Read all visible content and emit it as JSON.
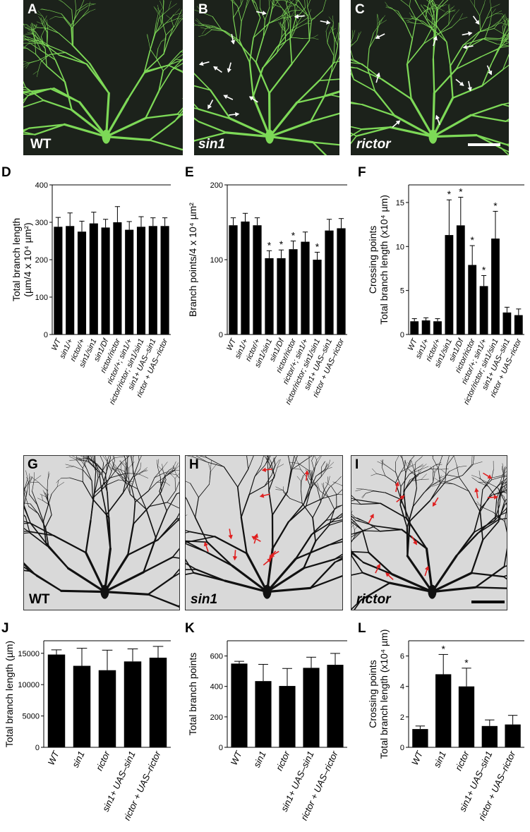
{
  "top_panels": [
    {
      "letter": "A",
      "label": "WT"
    },
    {
      "letter": "B",
      "label": "sin1"
    },
    {
      "letter": "C",
      "label": "rictor"
    }
  ],
  "mid_panels": [
    {
      "letter": "G",
      "label": "WT"
    },
    {
      "letter": "H",
      "label": "sin1"
    },
    {
      "letter": "I",
      "label": "rictor"
    }
  ],
  "colors": {
    "neuron": "#7dd957",
    "fluor_bg": "#1c221b",
    "gray_bg": "#d9d9d9",
    "ink": "#111111",
    "arrow_red": "#e02020",
    "arrow_white": "#ffffff"
  },
  "chart_data": [
    {
      "id": "D",
      "type": "bar",
      "letter": "D",
      "ylabel": "Total branch length",
      "ylabel2": "(µm/4 x 10⁴ µm²)",
      "ylim": [
        0,
        400
      ],
      "yticks": [
        0,
        100,
        200,
        300,
        400
      ],
      "categories": [
        "WT",
        "sin1/+",
        "rictor/+",
        "sin1/sin1",
        "sin1/Df",
        "rictor/rictor",
        "rictor/+; sin1/+",
        "rictor/rictor; sin1/sin1",
        "sin1+ UAS–sin1",
        "rictor + UAS–rictor"
      ],
      "values": [
        288,
        290,
        275,
        297,
        286,
        300,
        280,
        288,
        290,
        290
      ],
      "errors": [
        25,
        35,
        28,
        30,
        22,
        42,
        22,
        27,
        22,
        22
      ],
      "stars": [
        false,
        false,
        false,
        false,
        false,
        false,
        false,
        false,
        false,
        false
      ]
    },
    {
      "id": "E",
      "type": "bar",
      "letter": "E",
      "ylabel": "Branch points/4 x 10⁴ µm²",
      "ylim": [
        0,
        200
      ],
      "yticks": [
        0,
        100,
        200
      ],
      "categories": [
        "WT",
        "sin1/+",
        "rictor/+",
        "sin1/sin1",
        "sin1/Df",
        "rictor/rictor",
        "rictor/+; sin1/+",
        "rictor/rictor; sin1/sin1",
        "sin1+ UAS–sin1",
        "rictor + UAS–rictor"
      ],
      "values": [
        146,
        151,
        146,
        102,
        102,
        114,
        124,
        100,
        139,
        142
      ],
      "errors": [
        10,
        11,
        10,
        10,
        11,
        11,
        13,
        10,
        15,
        13
      ],
      "stars": [
        false,
        false,
        false,
        true,
        true,
        true,
        false,
        true,
        false,
        false
      ]
    },
    {
      "id": "F",
      "type": "bar",
      "letter": "F",
      "ylabel": "Crossing points",
      "ylabel2": "Total branch length (x10⁴ µm)",
      "ylim": [
        0,
        17
      ],
      "yticks": [
        0,
        5,
        10,
        15
      ],
      "categories": [
        "WT",
        "sin1/+",
        "rictor/+",
        "sin1/sin1",
        "sin1/Df",
        "rictor/rictor",
        "rictor/+; sin1/+",
        "rictor/rictor; sin1/sin1",
        "sin1+ UAS–sin1",
        "rictor + UAS–rictor"
      ],
      "values": [
        1.5,
        1.6,
        1.5,
        11.3,
        12.4,
        7.9,
        5.5,
        10.9,
        2.5,
        2.2
      ],
      "errors": [
        0.3,
        0.3,
        0.3,
        4.0,
        3.2,
        2.2,
        1.2,
        3.1,
        0.6,
        0.7
      ],
      "stars": [
        false,
        false,
        false,
        true,
        true,
        true,
        true,
        true,
        false,
        false
      ]
    },
    {
      "id": "J",
      "type": "bar",
      "letter": "J",
      "ylabel": "Total branch length (µm)",
      "ylim": [
        0,
        17000
      ],
      "yticks": [
        0,
        5000,
        10000,
        15000
      ],
      "categories": [
        "WT",
        "sin1",
        "rictor",
        "sin1+ UAS–sin1",
        "rictor + UAS–rictor"
      ],
      "values": [
        14800,
        13000,
        12300,
        13700,
        14300
      ],
      "errors": [
        750,
        2800,
        3200,
        2000,
        1800
      ],
      "stars": [
        false,
        false,
        false,
        false,
        false
      ]
    },
    {
      "id": "K",
      "type": "bar",
      "letter": "K",
      "ylabel": "Total branch points",
      "ylim": [
        0,
        700
      ],
      "yticks": [
        0,
        200,
        400,
        600
      ],
      "categories": [
        "WT",
        "sin1",
        "rictor",
        "sin1+ UAS–sin1",
        "rictor + UAS–rictor"
      ],
      "values": [
        550,
        435,
        403,
        522,
        542
      ],
      "errors": [
        15,
        110,
        115,
        70,
        75
      ],
      "stars": [
        false,
        false,
        false,
        false,
        false
      ]
    },
    {
      "id": "L",
      "type": "bar",
      "letter": "L",
      "ylabel": "Crossing points",
      "ylabel2": "Total branch length (x10⁴ µm)",
      "ylim": [
        0,
        7
      ],
      "yticks": [
        0,
        2,
        4,
        6
      ],
      "categories": [
        "WT",
        "sin1",
        "rictor",
        "sin1+ UAS–sin1",
        "rictor + UAS–rictor"
      ],
      "values": [
        1.2,
        4.8,
        4.0,
        1.4,
        1.5
      ],
      "errors": [
        0.2,
        1.3,
        1.2,
        0.4,
        0.6
      ],
      "stars": [
        false,
        true,
        true,
        false,
        false
      ]
    }
  ]
}
